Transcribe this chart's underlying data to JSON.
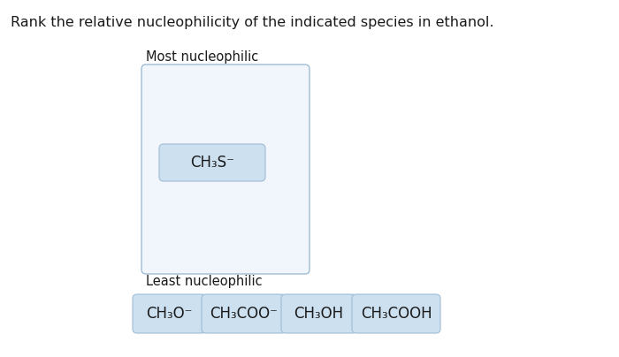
{
  "title": "Rank the relative nucleophilicity of the indicated species in ethanol.",
  "title_fontsize": 11.5,
  "most_label": "Most nucleophilic",
  "least_label": "Least nucleophilic",
  "box_color": "#cce0f0",
  "box_edge_color": "#a0bcd4",
  "big_box_facecolor": "#f0f6fb",
  "big_box_edge_color": "#a0bcd4",
  "placed_species_parts": [
    [
      "CH",
      0
    ],
    [
      "3",
      -1
    ],
    [
      "S",
      0
    ],
    [
      "⁻",
      1
    ]
  ],
  "bottom_species": [
    "CH₃O⁻",
    "CH₃COO⁻",
    "CH₃OH",
    "CH₃COOH"
  ],
  "bg_color": "#ffffff",
  "text_color": "#1a1a1a",
  "label_fontsize": 10.5,
  "species_fontsize": 12
}
